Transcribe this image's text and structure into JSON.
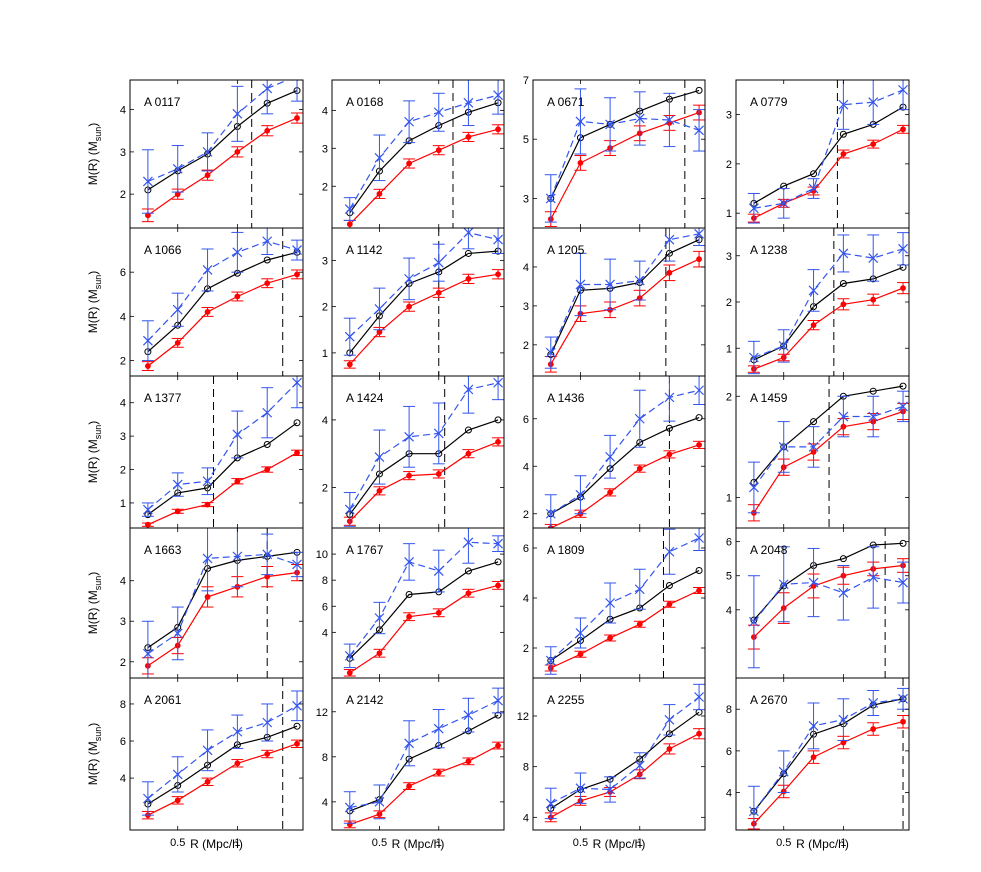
{
  "figure": {
    "ylabel_main": "M(R) (M",
    "ylabel_sub": "sun",
    "ylabel_close": ")",
    "xlabel": "R (Mpc/h)",
    "x_tick_labels": [
      "0.5",
      "1"
    ]
  },
  "chart_data": {
    "type": "line",
    "x": [
      0.25,
      0.5,
      0.75,
      1.0,
      1.25,
      1.5
    ],
    "xlim": [
      0.1,
      1.55
    ],
    "xlabel": "R (Mpc/h)",
    "ylabel": "M(R) (M_sun)",
    "series_styles": [
      {
        "name": "black-circles",
        "color": "#000000",
        "dash": "",
        "marker": "circle"
      },
      {
        "name": "red-points",
        "color": "#ff0000",
        "dash": "",
        "marker": "dot"
      },
      {
        "name": "blue-crosses",
        "color": "#3355ee",
        "dash": "7,4",
        "marker": "x"
      }
    ],
    "panels": [
      {
        "name": "A 0117",
        "ylim": [
          1.2,
          4.7
        ],
        "yticks": [
          2,
          3,
          4
        ],
        "vline": 1.12,
        "black": [
          2.1,
          2.55,
          2.95,
          3.6,
          4.15,
          4.45
        ],
        "black_err": 0,
        "red": [
          1.5,
          2.0,
          2.45,
          3.0,
          3.5,
          3.8
        ],
        "red_err": [
          0.15,
          0.12,
          0.12,
          0.12,
          0.12,
          0.12
        ],
        "blue": [
          2.3,
          2.6,
          3.0,
          3.9,
          4.5,
          4.8
        ],
        "blue_err": [
          0.75,
          0.55,
          0.45,
          0.65,
          0.6,
          0.6
        ]
      },
      {
        "name": "A 0168",
        "ylim": [
          0.9,
          4.8
        ],
        "yticks": [
          2,
          3,
          4
        ],
        "vline": 1.12,
        "black": [
          1.3,
          2.4,
          3.2,
          3.6,
          3.95,
          4.2
        ],
        "black_err": 0,
        "red": [
          1.0,
          1.8,
          2.6,
          2.95,
          3.3,
          3.5
        ],
        "red_err": [
          0.1,
          0.12,
          0.12,
          0.12,
          0.12,
          0.12
        ],
        "blue": [
          1.4,
          2.75,
          3.7,
          3.95,
          4.2,
          4.4
        ],
        "blue_err": [
          0.3,
          0.6,
          0.55,
          0.5,
          0.6,
          0.5
        ]
      },
      {
        "name": "A 0671",
        "ylim": [
          2.0,
          7.0
        ],
        "yticks": [
          3,
          5,
          7
        ],
        "vline": 1.38,
        "black": [
          3.0,
          5.05,
          5.5,
          5.95,
          6.35,
          6.65
        ],
        "black_err": 0,
        "red": [
          2.3,
          4.2,
          4.7,
          5.2,
          5.55,
          5.9
        ],
        "red_err": [
          0.25,
          0.25,
          0.25,
          0.25,
          0.25,
          0.25
        ],
        "blue": [
          3.0,
          5.6,
          5.5,
          5.7,
          5.65,
          5.3
        ],
        "blue_err": [
          0.8,
          1.1,
          0.9,
          0.9,
          0.9,
          0.7
        ]
      },
      {
        "name": "A 0779",
        "ylim": [
          0.7,
          3.7
        ],
        "yticks": [
          1,
          2,
          3
        ],
        "vline": 0.95,
        "black": [
          1.2,
          1.55,
          1.8,
          2.6,
          2.8,
          3.15
        ],
        "black_err": 0,
        "red": [
          0.9,
          1.2,
          1.45,
          2.2,
          2.4,
          2.7
        ],
        "red_err": [
          0.08,
          0.08,
          0.08,
          0.08,
          0.08,
          0.08
        ],
        "blue": [
          1.1,
          1.2,
          1.5,
          3.2,
          3.25,
          3.5
        ],
        "blue_err": [
          0.3,
          0.3,
          0.2,
          0.5,
          0.45,
          0.4
        ]
      },
      {
        "name": "A 1066",
        "ylim": [
          1.3,
          8.0
        ],
        "yticks": [
          2,
          4,
          6
        ],
        "vline": 1.38,
        "black": [
          2.4,
          3.6,
          5.25,
          5.95,
          6.55,
          6.9
        ],
        "black_err": 0,
        "red": [
          1.75,
          2.8,
          4.2,
          4.9,
          5.5,
          5.9
        ],
        "red_err": [
          0.2,
          0.2,
          0.2,
          0.2,
          0.2,
          0.2
        ],
        "blue": [
          2.9,
          4.3,
          6.1,
          6.9,
          7.4,
          7.0
        ],
        "blue_err": [
          0.9,
          0.75,
          0.95,
          0.9,
          0.6,
          0.45
        ]
      },
      {
        "name": "A 1142",
        "ylim": [
          0.5,
          3.7
        ],
        "yticks": [
          1,
          2,
          3
        ],
        "vline": 1.0,
        "black": [
          1.0,
          1.8,
          2.5,
          2.75,
          3.15,
          3.2
        ],
        "black_err": 0,
        "red": [
          0.75,
          1.45,
          2.0,
          2.3,
          2.6,
          2.7
        ],
        "red_err": [
          0.08,
          0.1,
          0.1,
          0.1,
          0.1,
          0.1
        ],
        "blue": [
          1.35,
          1.95,
          2.6,
          2.95,
          3.6,
          3.45
        ],
        "blue_err": [
          0.4,
          0.45,
          0.45,
          0.4,
          0.35,
          0.3
        ]
      },
      {
        "name": "A 1205",
        "ylim": [
          1.2,
          5.0
        ],
        "yticks": [
          2,
          3,
          4
        ],
        "vline": 1.22,
        "black": [
          1.75,
          3.4,
          3.45,
          3.6,
          4.35,
          4.7
        ],
        "black_err": 0,
        "red": [
          1.5,
          2.8,
          2.9,
          3.2,
          3.85,
          4.2
        ],
        "red_err": [
          0.2,
          0.2,
          0.2,
          0.2,
          0.2,
          0.2
        ],
        "blue": [
          1.8,
          3.55,
          3.55,
          3.65,
          4.7,
          4.85
        ],
        "blue_err": [
          0.4,
          0.8,
          0.65,
          0.5,
          0.55,
          0.3
        ]
      },
      {
        "name": "A 1238",
        "ylim": [
          0.4,
          3.6
        ],
        "yticks": [
          1,
          2,
          3
        ],
        "vline": 0.92,
        "black": [
          0.75,
          1.05,
          1.9,
          2.4,
          2.5,
          2.75
        ],
        "black_err": 0,
        "red": [
          0.55,
          0.8,
          1.5,
          1.95,
          2.05,
          2.3
        ],
        "red_err": [
          0.07,
          0.07,
          0.1,
          0.12,
          0.12,
          0.12
        ],
        "blue": [
          0.8,
          1.05,
          2.25,
          3.05,
          2.95,
          3.15
        ],
        "blue_err": [
          0.35,
          0.35,
          0.45,
          0.4,
          0.5,
          0.35
        ]
      },
      {
        "name": "A 1377",
        "ylim": [
          0.25,
          4.8
        ],
        "yticks": [
          1,
          2,
          3,
          4
        ],
        "vline": 0.8,
        "black": [
          0.65,
          1.3,
          1.45,
          2.35,
          2.75,
          3.4
        ],
        "black_err": 0,
        "red": [
          0.35,
          0.75,
          0.95,
          1.65,
          2.0,
          2.5
        ],
        "red_err": [
          0.05,
          0.06,
          0.06,
          0.08,
          0.08,
          0.08
        ],
        "blue": [
          0.8,
          1.55,
          1.65,
          3.05,
          3.7,
          4.6
        ],
        "blue_err": [
          0.2,
          0.35,
          0.4,
          0.7,
          0.75,
          0.75
        ]
      },
      {
        "name": "A 1424",
        "ylim": [
          0.8,
          5.3
        ],
        "yticks": [
          2,
          4
        ],
        "vline": 1.05,
        "black": [
          1.2,
          2.4,
          3.0,
          3.0,
          3.7,
          4.0
        ],
        "black_err": 0,
        "red": [
          1.0,
          1.9,
          2.35,
          2.4,
          3.0,
          3.35
        ],
        "red_err": [
          0.12,
          0.12,
          0.12,
          0.12,
          0.12,
          0.12
        ],
        "blue": [
          1.35,
          2.9,
          3.5,
          3.6,
          4.9,
          5.1
        ],
        "blue_err": [
          0.5,
          0.8,
          0.9,
          0.9,
          0.7,
          0.5
        ]
      },
      {
        "name": "A 1436",
        "ylim": [
          1.4,
          7.8
        ],
        "yticks": [
          2,
          4,
          6
        ],
        "vline": 1.25,
        "black": [
          2.0,
          2.7,
          3.9,
          5.0,
          5.6,
          6.05
        ],
        "black_err": 0,
        "red": [
          1.4,
          2.0,
          2.9,
          3.9,
          4.5,
          4.9
        ],
        "red_err": [
          0.15,
          0.15,
          0.15,
          0.15,
          0.15,
          0.15
        ],
        "blue": [
          2.0,
          2.8,
          4.4,
          6.0,
          6.9,
          7.2
        ],
        "blue_err": [
          0.8,
          0.8,
          0.9,
          1.2,
          1.0,
          0.6
        ]
      },
      {
        "name": "A 1459",
        "ylim": [
          0.7,
          2.2
        ],
        "yticks": [
          1,
          2
        ],
        "vline": 0.88,
        "black": [
          1.15,
          1.5,
          1.75,
          2.0,
          2.05,
          2.1
        ],
        "black_err": 0,
        "red": [
          0.85,
          1.3,
          1.45,
          1.7,
          1.75,
          1.85
        ],
        "red_err": [
          0.08,
          0.08,
          0.08,
          0.08,
          0.08,
          0.08
        ],
        "blue": [
          1.1,
          1.5,
          1.5,
          1.8,
          1.8,
          1.9
        ],
        "blue_err": [
          0.25,
          0.25,
          0.2,
          0.2,
          0.2,
          0.15
        ]
      },
      {
        "name": "A 1663",
        "ylim": [
          1.6,
          5.3
        ],
        "yticks": [
          2,
          3,
          4
        ],
        "vline": 1.25,
        "black": [
          2.35,
          2.85,
          4.3,
          4.5,
          4.6,
          4.7
        ],
        "black_err": 0,
        "red": [
          1.9,
          2.4,
          3.6,
          3.85,
          4.1,
          4.2
        ],
        "red_err": [
          0.2,
          0.2,
          0.25,
          0.25,
          0.25,
          0.2
        ],
        "blue": [
          2.2,
          2.7,
          4.55,
          4.6,
          4.65,
          4.4
        ],
        "blue_err": [
          0.8,
          0.65,
          0.8,
          0.75,
          0.5,
          0.3
        ]
      },
      {
        "name": "A 1767",
        "ylim": [
          0.5,
          12.0
        ],
        "yticks": [
          4,
          6,
          8,
          10
        ],
        "vline": null,
        "black": [
          2.0,
          4.2,
          6.9,
          7.1,
          8.7,
          9.4
        ],
        "black_err": 0,
        "red": [
          0.9,
          2.4,
          5.2,
          5.5,
          7.0,
          7.6
        ],
        "red_err": [
          0.25,
          0.3,
          0.3,
          0.3,
          0.3,
          0.3
        ],
        "blue": [
          2.2,
          5.1,
          9.4,
          8.7,
          10.9,
          10.8
        ],
        "blue_err": [
          0.9,
          1.2,
          1.4,
          1.6,
          1.6,
          0.6
        ]
      },
      {
        "name": "A 1809",
        "ylim": [
          0.8,
          6.8
        ],
        "yticks": [
          2,
          4,
          6
        ],
        "vline": 1.2,
        "black": [
          1.5,
          2.3,
          3.15,
          3.6,
          4.5,
          5.1
        ],
        "black_err": 0,
        "red": [
          1.2,
          1.75,
          2.4,
          2.95,
          3.75,
          4.3
        ],
        "red_err": [
          0.12,
          0.12,
          0.12,
          0.12,
          0.12,
          0.12
        ],
        "blue": [
          1.5,
          2.6,
          3.8,
          4.35,
          5.85,
          6.4
        ],
        "blue_err": [
          0.55,
          0.6,
          0.8,
          0.8,
          0.9,
          0.5
        ]
      },
      {
        "name": "A 2048",
        "ylim": [
          2.0,
          6.4
        ],
        "yticks": [
          4,
          5,
          6
        ],
        "vline": 1.35,
        "black": [
          3.7,
          4.7,
          5.3,
          5.5,
          5.9,
          5.95
        ],
        "black_err": 0,
        "red": [
          3.2,
          4.05,
          4.7,
          5.0,
          5.2,
          5.3
        ],
        "red_err": [
          0.35,
          0.45,
          0.35,
          0.25,
          0.2,
          0.2
        ],
        "blue": [
          3.65,
          4.75,
          4.8,
          4.5,
          4.95,
          4.8
        ],
        "blue_err": [
          1.35,
          1.1,
          1.0,
          0.8,
          0.9,
          0.6
        ]
      },
      {
        "name": "A 2061",
        "ylim": [
          1.2,
          9.4
        ],
        "yticks": [
          4,
          6,
          8
        ],
        "vline": 1.38,
        "black": [
          2.6,
          3.6,
          4.7,
          5.8,
          6.2,
          6.8
        ],
        "black_err": 0,
        "red": [
          2.0,
          2.8,
          3.8,
          4.8,
          5.3,
          5.85
        ],
        "red_err": [
          0.2,
          0.2,
          0.2,
          0.2,
          0.2,
          0.2
        ],
        "blue": [
          2.9,
          4.2,
          5.5,
          6.5,
          7.0,
          7.9
        ],
        "blue_err": [
          0.9,
          0.95,
          1.1,
          0.9,
          1.0,
          0.8
        ]
      },
      {
        "name": "A 2142",
        "ylim": [
          1.5,
          15.0
        ],
        "yticks": [
          4,
          8,
          12
        ],
        "vline": null,
        "black": [
          3.2,
          4.2,
          7.8,
          9.0,
          10.3,
          11.7
        ],
        "black_err": 0,
        "red": [
          2.0,
          2.9,
          5.4,
          6.6,
          7.6,
          9.0
        ],
        "red_err": [
          0.3,
          0.3,
          0.3,
          0.3,
          0.3,
          0.3
        ],
        "blue": [
          3.5,
          4.0,
          9.2,
          10.5,
          11.7,
          13.0
        ],
        "blue_err": [
          1.4,
          1.5,
          2.0,
          1.7,
          1.5,
          1.1
        ]
      },
      {
        "name": "A 2255",
        "ylim": [
          3.0,
          15.0
        ],
        "yticks": [
          4,
          8,
          12
        ],
        "vline": null,
        "black": [
          4.7,
          6.2,
          7.0,
          8.6,
          10.6,
          12.3
        ],
        "black_err": 0,
        "red": [
          4.0,
          5.3,
          6.0,
          7.4,
          9.4,
          10.6
        ],
        "red_err": [
          0.35,
          0.35,
          0.35,
          0.35,
          0.4,
          0.4
        ],
        "blue": [
          5.1,
          6.3,
          6.2,
          8.1,
          11.7,
          13.5
        ],
        "blue_err": [
          1.2,
          1.2,
          1.0,
          1.0,
          1.2,
          1.0
        ]
      },
      {
        "name": "A 2670",
        "ylim": [
          2.2,
          9.5
        ],
        "yticks": [
          4,
          6,
          8
        ],
        "vline": 1.5,
        "black": [
          3.1,
          4.9,
          6.8,
          7.3,
          8.2,
          8.5
        ],
        "black_err": 0,
        "red": [
          2.5,
          4.05,
          5.7,
          6.4,
          7.05,
          7.4
        ],
        "red_err": [
          0.25,
          0.3,
          0.3,
          0.3,
          0.3,
          0.3
        ],
        "blue": [
          3.1,
          5.0,
          7.2,
          7.5,
          8.3,
          8.5
        ],
        "blue_err": [
          1.2,
          1.0,
          1.1,
          1.0,
          0.6,
          0.5
        ]
      }
    ]
  }
}
